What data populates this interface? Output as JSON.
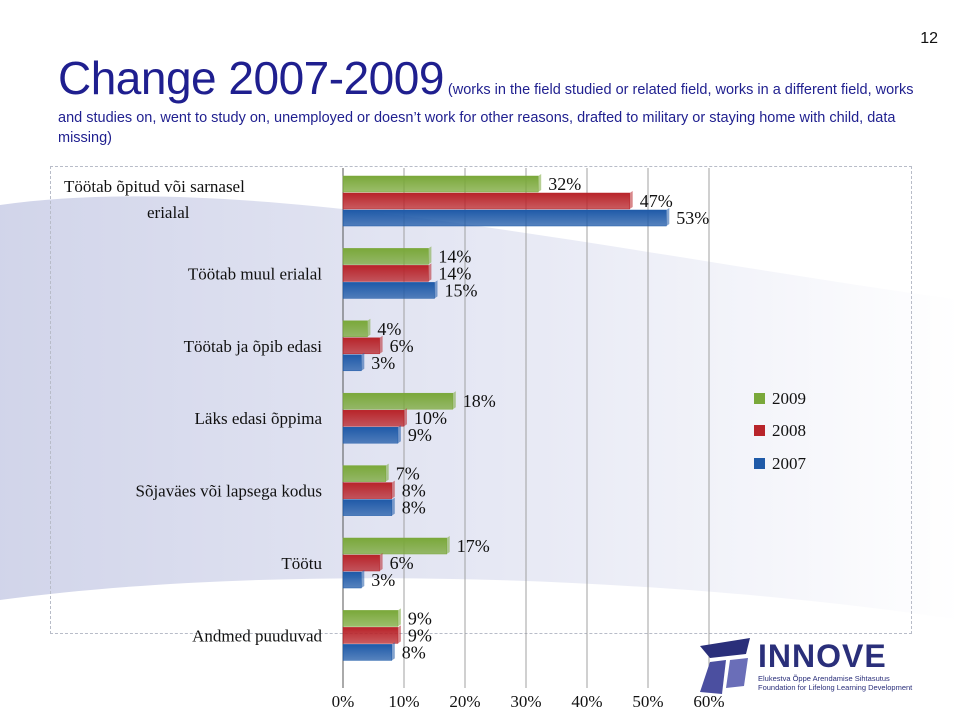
{
  "page_number": "12",
  "title": {
    "main": "Change 2007-2009",
    "sub": " (works in the field studied or related field, works in a different field, works and studies on, went to study on, unemployed or doesn’t work for other reasons, drafted to military or staying home with child, data missing)"
  },
  "logo": {
    "name": "INNOVE",
    "line1": "Elukestva Õppe Arendamise Sihtasutus",
    "line2": "Foundation for Lifelong Learning Development",
    "icon": "innove-logo-icon",
    "color": "#2a2f7a"
  },
  "chart_data": {
    "type": "bar",
    "orientation": "horizontal",
    "categories": [
      "Töötab õpitud või sarnasel erialal",
      "Töötab muul erialal",
      "Töötab ja õpib edasi",
      "Läks edasi õppima",
      "Sõjaväes või lapsega kodus",
      "Töötu",
      "Andmed puuduvad"
    ],
    "series": [
      {
        "name": "2009",
        "color": "#7aa83a",
        "values": [
          32,
          14,
          4,
          18,
          7,
          17,
          9
        ],
        "labels": [
          "32%",
          "14%",
          "4%",
          "18%",
          "7%",
          "17%",
          "9%"
        ]
      },
      {
        "name": "2008",
        "color": "#b8242a",
        "values": [
          47,
          14,
          6,
          10,
          8,
          6,
          9
        ],
        "labels": [
          "47%",
          "14%",
          "6%",
          "10%",
          "8%",
          "6%",
          "9%"
        ]
      },
      {
        "name": "2007",
        "color": "#1f5aa8",
        "values": [
          53,
          15,
          3,
          9,
          8,
          3,
          8
        ],
        "labels": [
          "53%",
          "15%",
          "3%",
          "9%",
          "8%",
          "3%",
          "8%"
        ]
      }
    ],
    "xlim": [
      0,
      60
    ],
    "xticks": [
      "0%",
      "10%",
      "20%",
      "30%",
      "40%",
      "50%",
      "60%"
    ],
    "grid": true,
    "legend": "right"
  }
}
